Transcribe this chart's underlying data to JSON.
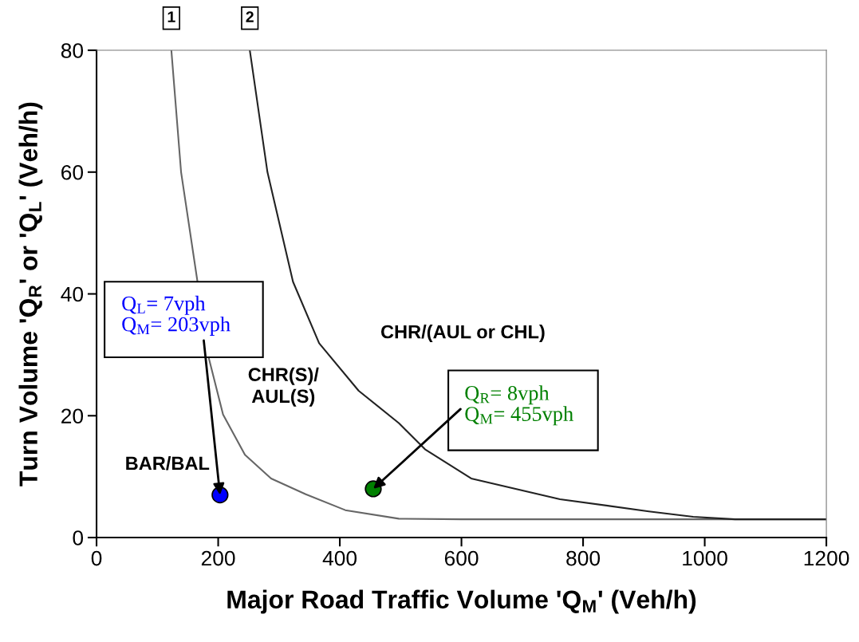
{
  "chart_data": {
    "type": "line",
    "xlabel": "Major Road Traffic Volume 'Q$_{M}$' (Veh/h)",
    "ylabel": "Turn Volume 'Q$_{R}$' or 'Q$_{L}$' (Veh/h)",
    "xlim": [
      0,
      1200
    ],
    "ylim": [
      0,
      80
    ],
    "xticks": [
      0,
      200,
      400,
      600,
      800,
      1000,
      1200
    ],
    "yticks": [
      0,
      20,
      40,
      60,
      80
    ],
    "grid": false,
    "series": [
      {
        "color": "#666666",
        "x": [
          123,
          139,
          185,
          208,
          244,
          287,
          344,
          409,
          497,
          600,
          800,
          1000,
          1200
        ],
        "values": [
          80,
          60,
          29.3,
          20.2,
          13.6,
          9.7,
          7.1,
          4.5,
          3.1,
          3,
          3,
          3,
          3
        ]
      },
      {
        "color": "#222222",
        "x": [
          252,
          281,
          323,
          366,
          431,
          497,
          540,
          616,
          762,
          908,
          981,
          1050,
          1200
        ],
        "values": [
          80,
          60,
          42,
          31.9,
          24.1,
          18.8,
          14.5,
          9.7,
          6.3,
          4.3,
          3.4,
          3,
          3
        ]
      },
      {
        "type": "scatter",
        "color": "#0000ff",
        "x": [
          203
        ],
        "values": [
          7
        ]
      },
      {
        "type": "scatter",
        "color": "#008000",
        "x": [
          455
        ],
        "values": [
          8
        ]
      }
    ],
    "annotations": [
      {
        "text": "Q$_{L}$= 7vph\nQ$_{M}$= 203vph",
        "x": 203,
        "y": 7
      },
      {
        "text": "Q$_{R}$= 8vph\nQ$_{M}$= 455vph",
        "x": 455,
        "y": 8
      },
      {
        "text": "1",
        "x": 123,
        "y": 80
      },
      {
        "text": "2",
        "x": 252,
        "y": 80
      },
      "BAR/BAL",
      "CHR(S)/\nAUL(S)",
      "CHR/(AUL or CHL)"
    ]
  }
}
